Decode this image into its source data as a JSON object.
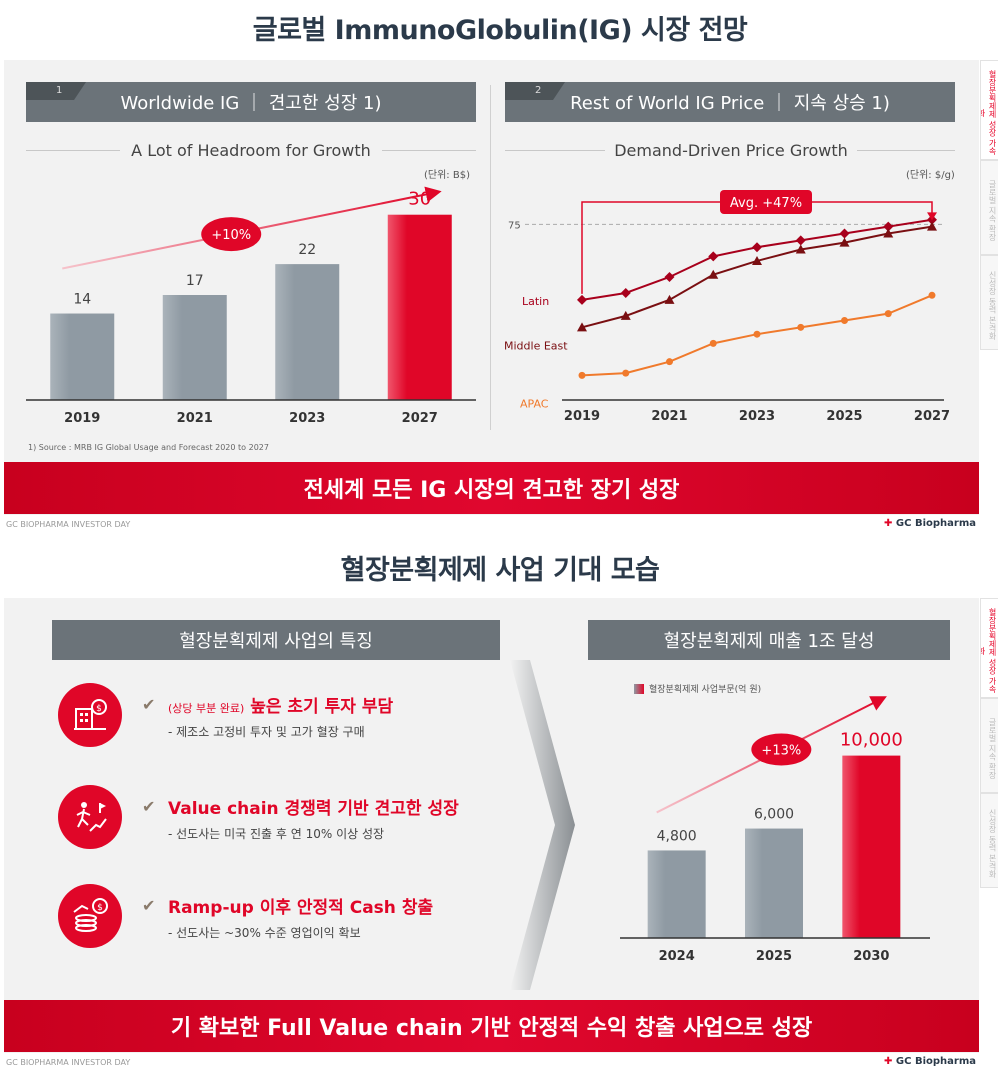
{
  "slide1": {
    "title": "글로벌 ImmunoGlobulin(IG) 시장 전망",
    "side_tabs": [
      "혈장분획제제 성장 가속화",
      "글로벌 지속 확장",
      "신성장 동력 본격화"
    ],
    "left_panel": {
      "number": "1",
      "header": "Worldwide IG ｜ 견고한 성장 1)",
      "subtitle": "A Lot of Headroom for Growth",
      "unit": "(단위: B$)",
      "footnote": "1) Source : MRB IG Global Usage and Forecast 2020 to 2027"
    },
    "right_panel": {
      "number": "2",
      "header": "Rest of World IG Price ｜ 지속 상승 1)",
      "subtitle": "Demand-Driven Price Growth",
      "unit": "(단위: $/g)"
    },
    "banner": "전세계 모든 IG 시장의 견고한 장기 성장",
    "footer_left": "GC BIOPHARMA  INVESTOR DAY",
    "footer_right": "GC Biopharma"
  },
  "slide2": {
    "title": "혈장분획제제 사업 기대 모습",
    "side_tabs": [
      "혈장분획제제 성장 가속화",
      "글로벌 지속 확장",
      "신성장 동력 본격화"
    ],
    "left_header": "혈장분획제제 사업의 특징",
    "right_header": "혈장분획제제 매출 1조 달성",
    "legend": "혈장분획제제 사업부문(억 원)",
    "features": [
      {
        "icon": "building-money-icon",
        "prefix": "(상당 부분 완료)",
        "title": "높은 초기 투자 부담",
        "sub": "- 제조소 고정비 투자 및 고가 혈장 구매"
      },
      {
        "icon": "growth-runner-icon",
        "prefix": "",
        "title": "Value chain 경쟁력 기반 견고한 성장",
        "sub": "- 선도사는 미국 진출 후 연 10% 이상 성장"
      },
      {
        "icon": "coins-chart-icon",
        "prefix": "",
        "title": "Ramp-up 이후 안정적 Cash  창출",
        "sub": "- 선도사는 ~30% 수준 영업이익 확보"
      }
    ],
    "banner": "기 확보한 Full Value chain 기반 안정적 수익 창출 사업으로 성장",
    "footer_left": "GC BIOPHARMA  INVESTOR DAY",
    "footer_right": "GC Biopharma"
  },
  "colors": {
    "accent_red": "#e00628",
    "bar_gray": "#8f9aa3",
    "header_gray": "#6b7379",
    "latin": "#a8001c",
    "middle_east": "#7a0f12",
    "apac": "#f07a2c"
  },
  "chart_data": [
    {
      "type": "bar",
      "categories": [
        "2019",
        "2021",
        "2023",
        "2027"
      ],
      "values": [
        14,
        17,
        22,
        30
      ],
      "highlight": "2027",
      "annotation": "+10%",
      "ylim": [
        0,
        34
      ]
    },
    {
      "type": "line",
      "x": [
        "2019",
        "2020",
        "2021",
        "2022",
        "2023",
        "2024",
        "2025",
        "2026",
        "2027"
      ],
      "xticks": [
        "2019",
        "2021",
        "2023",
        "2025",
        "2027"
      ],
      "series": [
        {
          "name": "Latin",
          "marker": "diamond",
          "values": [
            42,
            45,
            52,
            61,
            65,
            68,
            71,
            74,
            77
          ]
        },
        {
          "name": "Middle East",
          "marker": "triangle",
          "values": [
            30,
            35,
            42,
            53,
            59,
            64,
            67,
            71,
            74
          ]
        },
        {
          "name": "APAC",
          "marker": "circle",
          "values": [
            9,
            10,
            15,
            23,
            27,
            30,
            33,
            36,
            44
          ]
        }
      ],
      "reference_line": 75,
      "reference_label": "75",
      "annotation": "Avg. +47%",
      "ylim": [
        0,
        90
      ]
    },
    {
      "type": "bar",
      "categories": [
        "2024",
        "2025",
        "2030"
      ],
      "values": [
        4800,
        6000,
        10000
      ],
      "labels": [
        "4,800",
        "6,000",
        "10,000"
      ],
      "highlight": "2030",
      "annotation": "+13%",
      "ylim": [
        0,
        12500
      ]
    }
  ]
}
